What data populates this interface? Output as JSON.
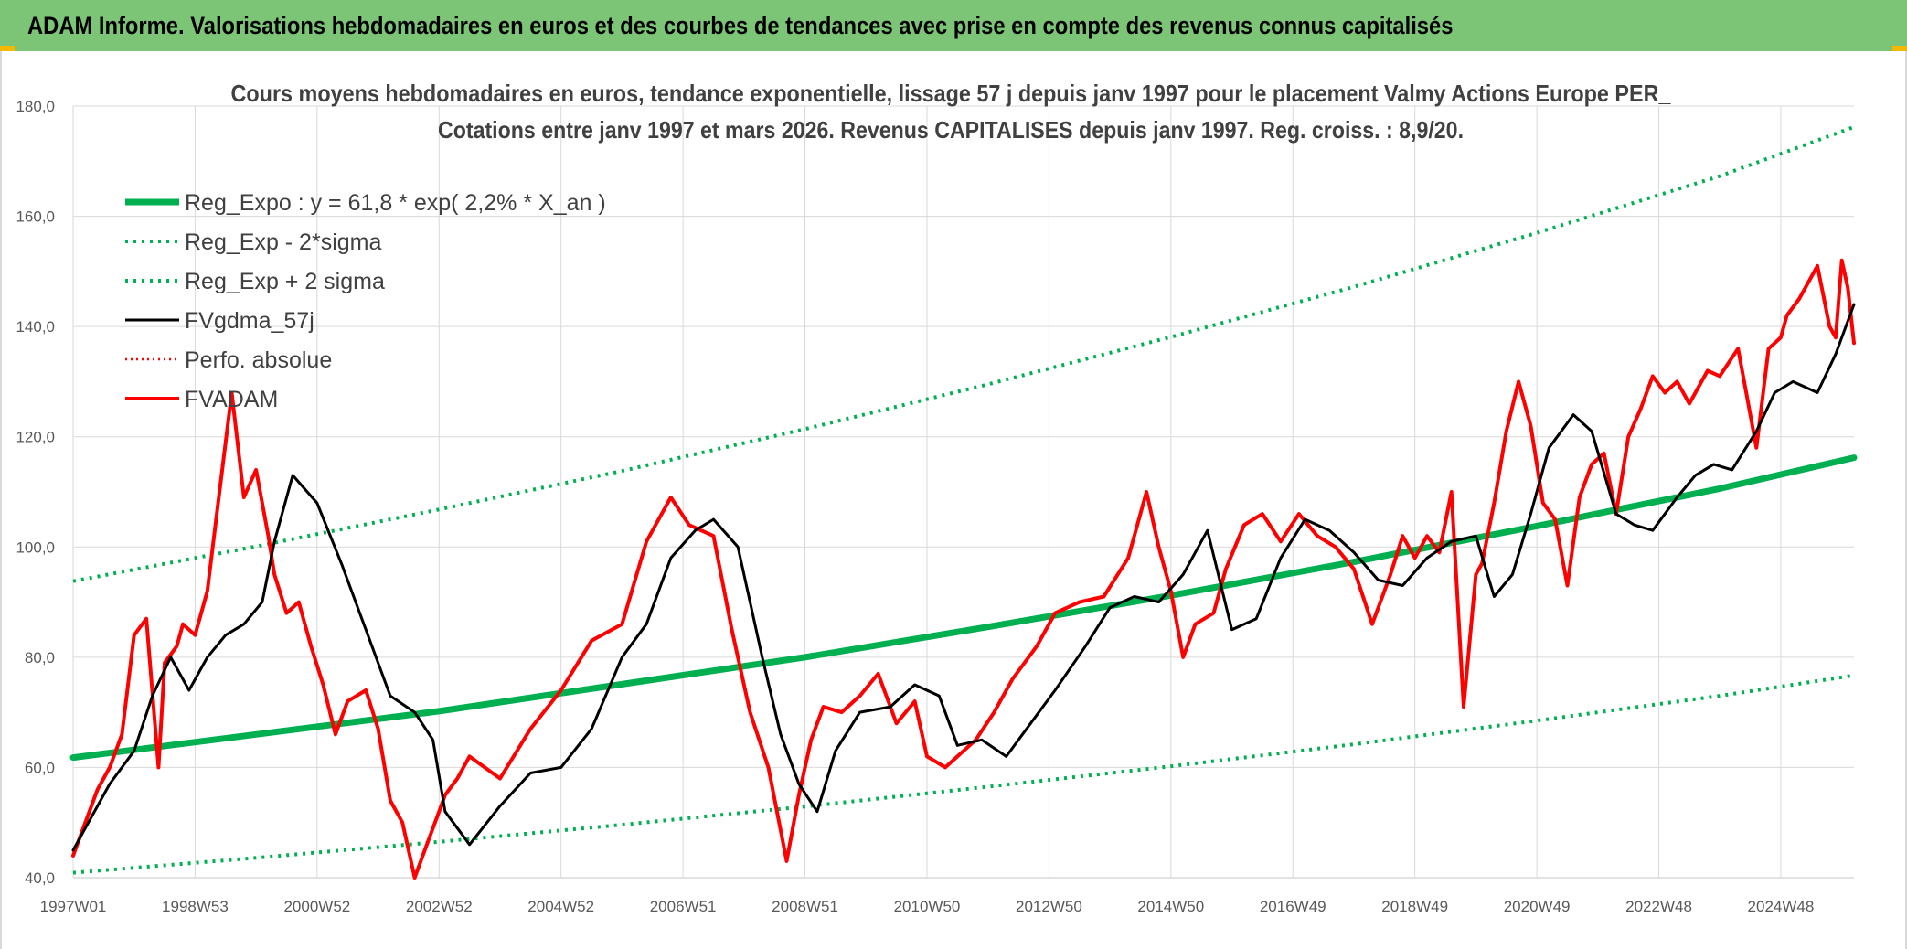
{
  "header": {
    "title": "ADAM Informe. Valorisations hebdomadaires en euros et des courbes de tendances avec prise en compte des revenus connus capitalisés"
  },
  "colors": {
    "header_bg": "#7cc576",
    "reg": "#00b050",
    "gdma": "#000000",
    "fvadam": "#ff0000",
    "grid": "#d9d9d9"
  },
  "chart_data": {
    "type": "line",
    "title": "Cours moyens hebdomadaires en euros, tendance exponentielle, lissage 57 j depuis janv 1997 pour le placement Valmy Actions Europe PER_",
    "subtitle": "Cotations entre janv 1997 et mars 2026. Revenus CAPITALISES depuis janv 1997. Reg. croiss. : 8,9/20.",
    "xlabel": "",
    "ylabel": "",
    "x_range": [
      1997.0,
      2026.2
    ],
    "ylim": [
      40,
      180
    ],
    "y_ticks": [
      "40,0",
      "60,0",
      "80,0",
      "100,0",
      "120,0",
      "140,0",
      "160,0",
      "180,0"
    ],
    "x_tick_labels": [
      "1997W01",
      "1998W53",
      "2000W52",
      "2002W52",
      "2004W52",
      "2006W51",
      "2008W51",
      "2010W50",
      "2012W50",
      "2014W50",
      "2016W49",
      "2018W49",
      "2020W49",
      "2022W48",
      "2024W48"
    ],
    "x_tick_positions": [
      1997.0,
      1999.0,
      2001.0,
      2003.0,
      2005.0,
      2007.0,
      2009.0,
      2011.0,
      2013.0,
      2015.0,
      2017.0,
      2019.0,
      2021.0,
      2023.0,
      2025.0
    ],
    "grid": true,
    "legend_position": "top-left",
    "series": [
      {
        "name": "Reg_Expo : y = 61,8 * exp( 2,2% *  X_an )",
        "style": "solid-thick",
        "x": [
          1997.0,
          2000.0,
          2003.0,
          2006.0,
          2009.0,
          2012.0,
          2015.0,
          2018.0,
          2021.0,
          2024.0,
          2026.2
        ],
        "values": [
          61.8,
          66.0,
          70.2,
          75.1,
          80.0,
          85.5,
          91.2,
          97.3,
          103.8,
          110.6,
          116.2
        ]
      },
      {
        "name": "Reg_Exp - 2*sigma",
        "style": "dotted",
        "x": [
          1997.0,
          2000.0,
          2003.0,
          2006.0,
          2009.0,
          2012.0,
          2015.0,
          2018.0,
          2021.0,
          2024.0,
          2026.2
        ],
        "values": [
          40.9,
          43.6,
          46.5,
          49.6,
          52.9,
          56.5,
          60.2,
          64.2,
          68.5,
          73.0,
          76.7
        ]
      },
      {
        "name": "Reg_Exp + 2 sigma",
        "style": "dotted",
        "x": [
          1997.0,
          2000.0,
          2003.0,
          2006.0,
          2009.0,
          2012.0,
          2015.0,
          2018.0,
          2021.0,
          2024.0,
          2026.2
        ],
        "values": [
          93.8,
          100.1,
          106.8,
          113.8,
          121.4,
          129.5,
          138.1,
          147.2,
          157.0,
          167.3,
          176.2
        ]
      },
      {
        "name": "FVgdma_57j",
        "style": "solid-black",
        "x": [
          1997.0,
          1997.3,
          1997.6,
          1998.0,
          1998.3,
          1998.6,
          1998.9,
          1999.2,
          1999.5,
          1999.8,
          2000.1,
          2000.3,
          2000.6,
          2001.0,
          2001.4,
          2001.8,
          2002.2,
          2002.6,
          2002.9,
          2003.1,
          2003.5,
          2004.0,
          2004.5,
          2005.0,
          2005.5,
          2006.0,
          2006.4,
          2006.8,
          2007.2,
          2007.5,
          2007.9,
          2008.3,
          2008.6,
          2008.9,
          2009.2,
          2009.5,
          2009.9,
          2010.4,
          2010.8,
          2011.2,
          2011.5,
          2011.9,
          2012.3,
          2012.7,
          2013.1,
          2013.6,
          2014.0,
          2014.4,
          2014.8,
          2015.2,
          2015.6,
          2016.0,
          2016.4,
          2016.8,
          2017.2,
          2017.6,
          2018.0,
          2018.4,
          2018.8,
          2019.2,
          2019.6,
          2020.0,
          2020.3,
          2020.6,
          2020.9,
          2021.2,
          2021.6,
          2021.9,
          2022.3,
          2022.6,
          2022.9,
          2023.3,
          2023.6,
          2023.9,
          2024.2,
          2024.6,
          2024.9,
          2025.2,
          2025.6,
          2025.9,
          2026.1,
          2026.2
        ],
        "values": [
          45,
          51,
          57,
          63,
          73,
          80,
          74,
          80,
          84,
          86,
          90,
          101,
          113,
          108,
          97,
          85,
          73,
          70,
          65,
          52,
          46,
          53,
          59,
          60,
          67,
          80,
          86,
          98,
          103,
          105,
          100,
          80,
          66,
          57,
          52,
          63,
          70,
          71,
          75,
          73,
          64,
          65,
          62,
          68,
          74,
          82,
          89,
          91,
          90,
          95,
          103,
          85,
          87,
          98,
          105,
          103,
          99,
          94,
          93,
          98,
          101,
          102,
          91,
          95,
          106,
          118,
          124,
          121,
          106,
          104,
          103,
          109,
          113,
          115,
          114,
          121,
          128,
          130,
          128,
          135,
          141,
          144
        ]
      },
      {
        "name": "Perfo. absolue",
        "style": "dotted-red",
        "x": [],
        "values": []
      },
      {
        "name": "FVADAM",
        "style": "solid-red",
        "x": [
          1997.0,
          1997.2,
          1997.4,
          1997.6,
          1997.8,
          1998.0,
          1998.2,
          1998.4,
          1998.5,
          1998.7,
          1998.8,
          1999.0,
          1999.2,
          1999.4,
          1999.6,
          1999.8,
          2000.0,
          2000.2,
          2000.3,
          2000.5,
          2000.7,
          2000.9,
          2001.1,
          2001.3,
          2001.5,
          2001.8,
          2002.0,
          2002.2,
          2002.4,
          2002.6,
          2002.8,
          2003.0,
          2003.1,
          2003.3,
          2003.5,
          2004.0,
          2004.5,
          2005.0,
          2005.5,
          2006.0,
          2006.4,
          2006.8,
          2007.1,
          2007.5,
          2007.8,
          2008.1,
          2008.4,
          2008.7,
          2008.9,
          2009.1,
          2009.3,
          2009.6,
          2009.9,
          2010.2,
          2010.5,
          2010.8,
          2011.0,
          2011.3,
          2011.5,
          2011.8,
          2012.1,
          2012.4,
          2012.8,
          2013.1,
          2013.5,
          2013.9,
          2014.3,
          2014.6,
          2014.8,
          2015.0,
          2015.2,
          2015.4,
          2015.7,
          2015.9,
          2016.2,
          2016.5,
          2016.8,
          2017.1,
          2017.4,
          2017.7,
          2018.0,
          2018.3,
          2018.6,
          2018.8,
          2019.0,
          2019.2,
          2019.4,
          2019.6,
          2019.8,
          2020.0,
          2020.1,
          2020.3,
          2020.5,
          2020.7,
          2020.9,
          2021.1,
          2021.3,
          2021.5,
          2021.7,
          2021.9,
          2022.1,
          2022.3,
          2022.5,
          2022.7,
          2022.9,
          2023.1,
          2023.3,
          2023.5,
          2023.8,
          2024.0,
          2024.3,
          2024.6,
          2024.8,
          2025.0,
          2025.1,
          2025.3,
          2025.6,
          2025.8,
          2025.9,
          2026.0,
          2026.1,
          2026.2
        ],
        "values": [
          44,
          50,
          56,
          60,
          66,
          84,
          87,
          60,
          79,
          82,
          86,
          84,
          92,
          110,
          128,
          109,
          114,
          102,
          95,
          88,
          90,
          82,
          75,
          66,
          72,
          74,
          67,
          54,
          50,
          40,
          46,
          52,
          55,
          58,
          62,
          58,
          67,
          74,
          83,
          86,
          101,
          109,
          104,
          102,
          85,
          70,
          60,
          43,
          55,
          65,
          71,
          70,
          73,
          77,
          68,
          72,
          62,
          60,
          62,
          65,
          70,
          76,
          82,
          88,
          90,
          91,
          98,
          110,
          100,
          92,
          80,
          86,
          88,
          96,
          104,
          106,
          101,
          106,
          102,
          100,
          96,
          86,
          95,
          102,
          98,
          102,
          99,
          110,
          71,
          95,
          97,
          108,
          121,
          130,
          122,
          108,
          105,
          93,
          109,
          115,
          117,
          106,
          120,
          125,
          131,
          128,
          130,
          126,
          132,
          131,
          136,
          118,
          136,
          138,
          142,
          145,
          151,
          140,
          138,
          152,
          147,
          137
        ]
      }
    ]
  }
}
